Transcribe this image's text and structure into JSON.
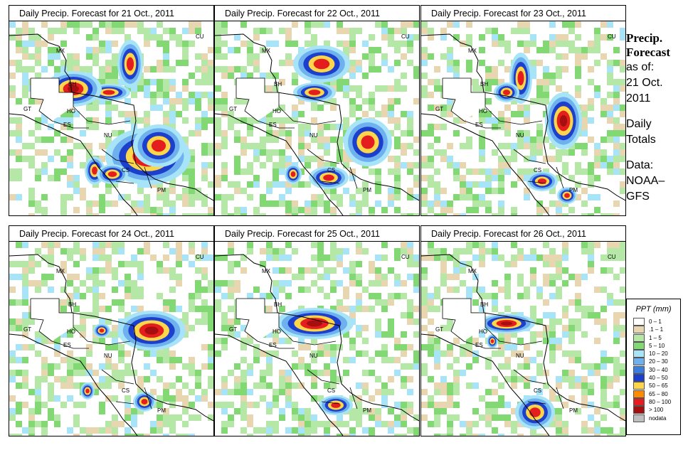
{
  "panels": [
    {
      "title": "Daily Precip. Forecast for  21 Oct., 2011",
      "day": 21
    },
    {
      "title": "Daily Precip. Forecast for  22 Oct., 2011",
      "day": 22
    },
    {
      "title": "Daily Precip. Forecast for  23 Oct., 2011",
      "day": 23
    },
    {
      "title": "Daily Precip. Forecast for  24 Oct., 2011",
      "day": 24
    },
    {
      "title": "Daily Precip. Forecast for  25 Oct., 2011",
      "day": 25
    },
    {
      "title": "Daily Precip. Forecast for  26 Oct., 2011",
      "day": 26
    }
  ],
  "country_labels": [
    "MX",
    "BH",
    "GT",
    "HO",
    "ES",
    "NU",
    "CS",
    "PM",
    "CU"
  ],
  "side": {
    "heading1": "Precip.",
    "heading2": "Forecast",
    "asof": "as of:",
    "date1": "21 Oct.",
    "date2": "2011",
    "daily1": "Daily",
    "daily2": "Totals",
    "data1": "Data:",
    "data2": "NOAA–",
    "data3": "GFS"
  },
  "legend": {
    "title": "PPT (mm)",
    "items": [
      {
        "label": "0 – 1",
        "color": "#ffffff"
      },
      {
        "label": ".1 – 1",
        "color": "#e8d6b0"
      },
      {
        "label": "1 – 5",
        "color": "#b5e8a6"
      },
      {
        "label": "5 – 10",
        "color": "#82d872"
      },
      {
        "label": "10 – 20",
        "color": "#a8e4f8"
      },
      {
        "label": "20 – 30",
        "color": "#6fb1ee"
      },
      {
        "label": "30 – 40",
        "color": "#3a7fe0"
      },
      {
        "label": "40 – 50",
        "color": "#1c3fcc"
      },
      {
        "label": "50 – 65",
        "color": "#ffd54a"
      },
      {
        "label": "65 – 80",
        "color": "#ff8c00"
      },
      {
        "label": "80 – 100",
        "color": "#e41e1e"
      },
      {
        "label": "> 100",
        "color": "#a50f0f"
      },
      {
        "label": "nodata",
        "color": "#bfbfbf"
      }
    ]
  }
}
